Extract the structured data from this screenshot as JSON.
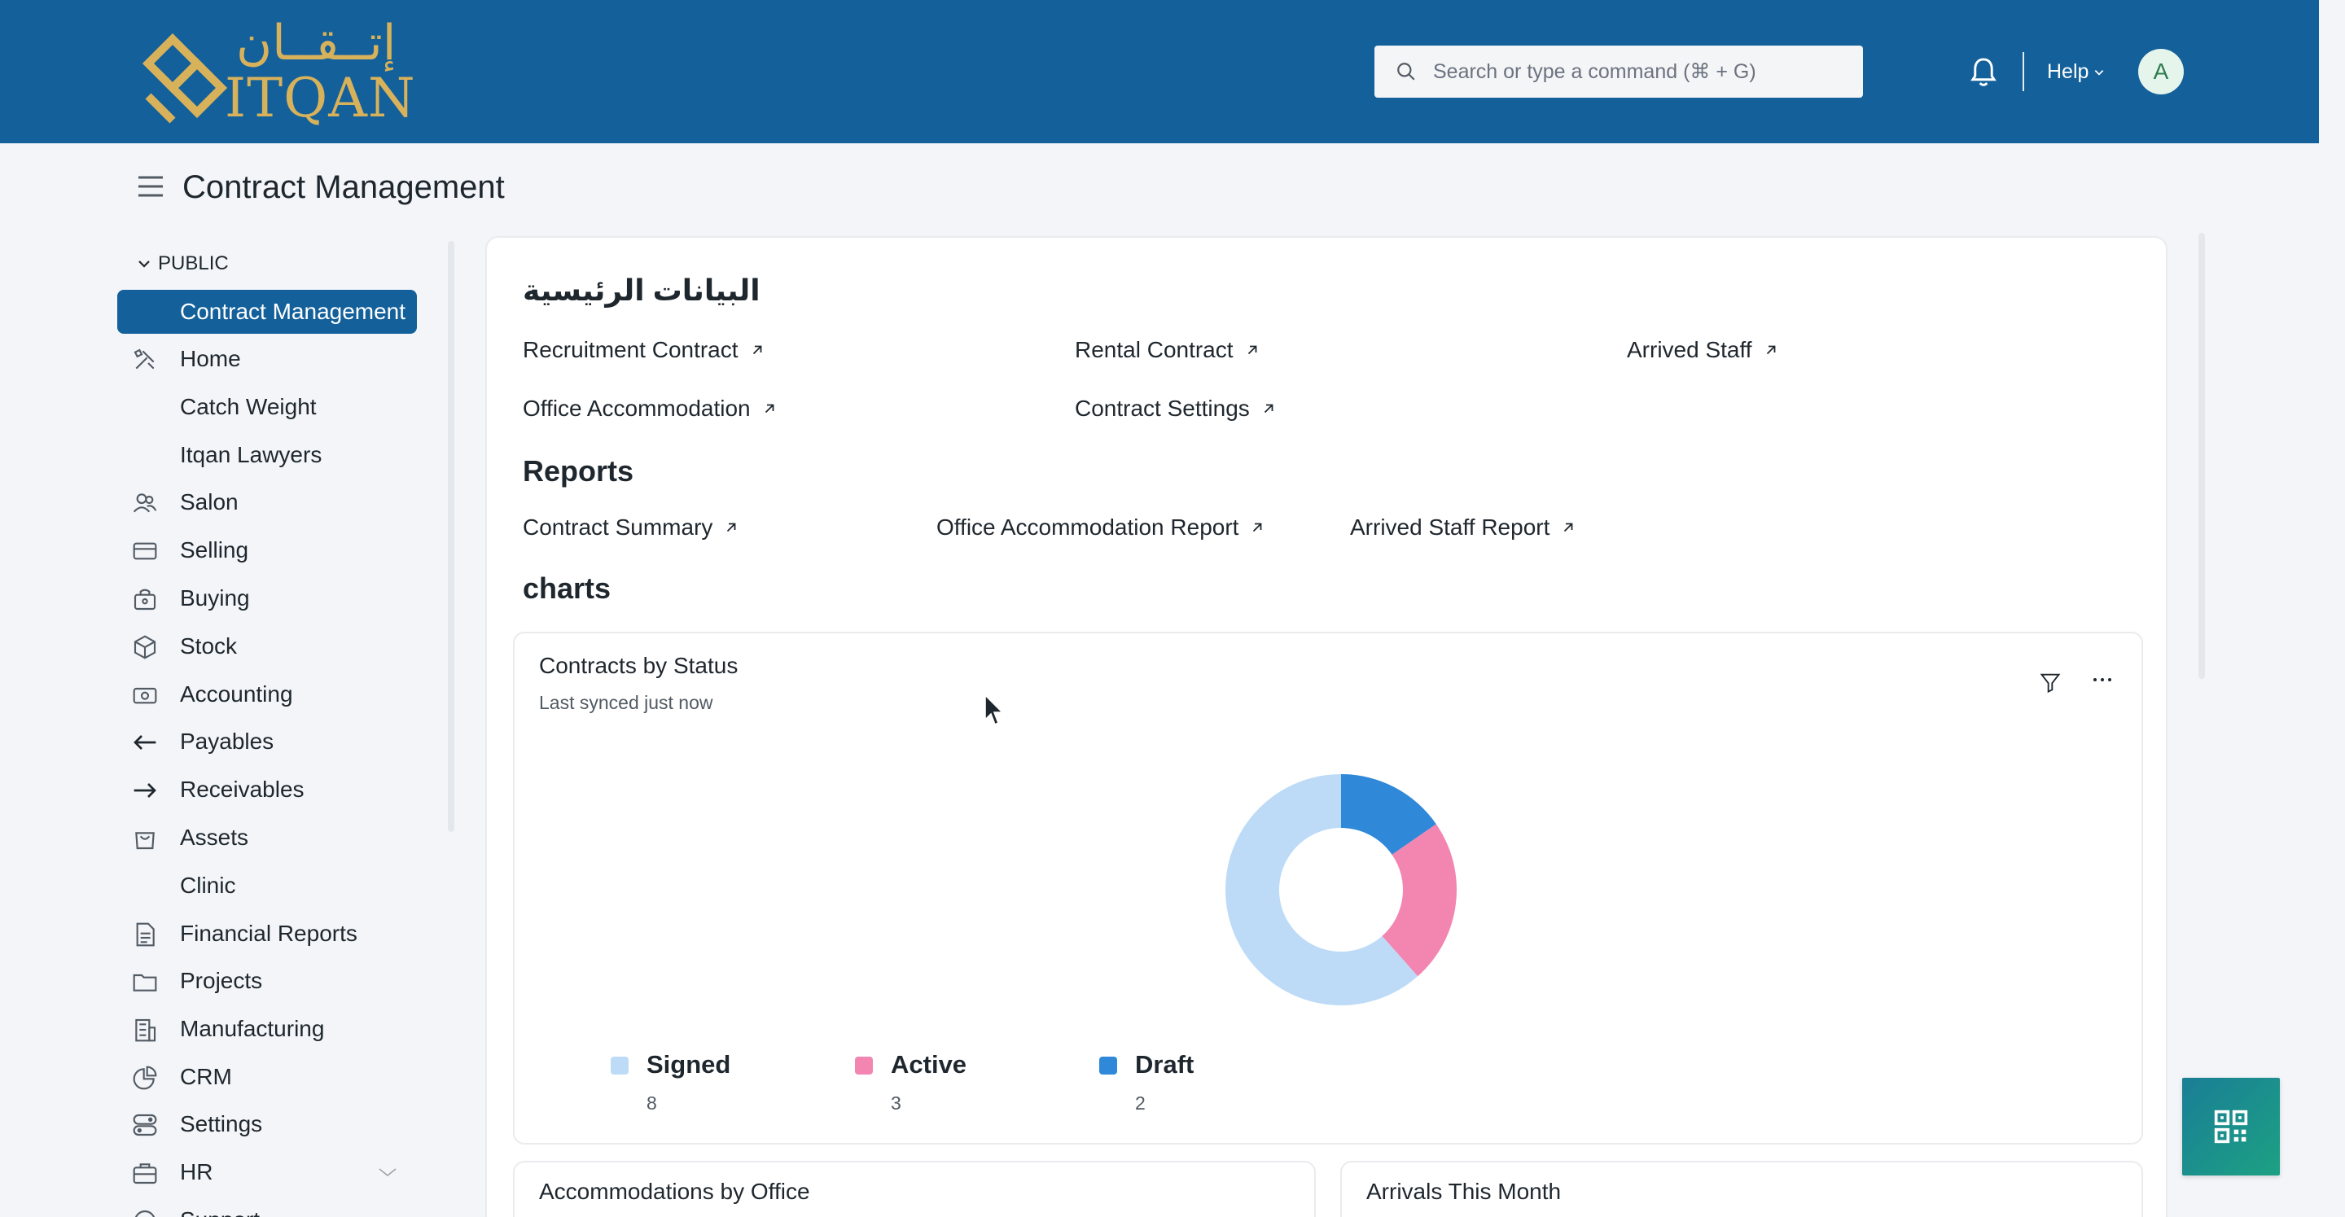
{
  "navbar": {
    "logo_text_en": "ITQAN",
    "logo_text_ar": "إتــقــان",
    "search_placeholder": "Search or type a command (⌘ + G)",
    "help_label": "Help",
    "avatar_initial": "A",
    "bg_color": "#13609a"
  },
  "page": {
    "title": "Contract Management"
  },
  "sidebar": {
    "section": "PUBLIC",
    "items": [
      {
        "label": "Contract Management",
        "icon": "none",
        "active": true
      },
      {
        "label": "Home",
        "icon": "tools-icon"
      },
      {
        "label": "Catch Weight",
        "icon": "none"
      },
      {
        "label": "Itqan Lawyers",
        "icon": "none"
      },
      {
        "label": "Salon",
        "icon": "users-icon"
      },
      {
        "label": "Selling",
        "icon": "card-icon"
      },
      {
        "label": "Buying",
        "icon": "bag-icon"
      },
      {
        "label": "Stock",
        "icon": "box-icon"
      },
      {
        "label": "Accounting",
        "icon": "money-icon"
      },
      {
        "label": "Payables",
        "icon": "arrow-left-icon"
      },
      {
        "label": "Receivables",
        "icon": "arrow-right-icon"
      },
      {
        "label": "Assets",
        "icon": "shopping-bag-icon"
      },
      {
        "label": "Clinic",
        "icon": "none"
      },
      {
        "label": "Financial Reports",
        "icon": "document-icon"
      },
      {
        "label": "Projects",
        "icon": "folder-icon"
      },
      {
        "label": "Manufacturing",
        "icon": "building-icon"
      },
      {
        "label": "CRM",
        "icon": "pie-icon"
      },
      {
        "label": "Settings",
        "icon": "toggles-icon"
      },
      {
        "label": "HR",
        "icon": "briefcase-icon"
      },
      {
        "label": "Support",
        "icon": "headset-icon"
      }
    ]
  },
  "main": {
    "masters_heading": "البيانات الرئيسية",
    "masters_links": [
      "Recruitment Contract",
      "Rental Contract",
      "Arrived Staff",
      "Office Accommodation",
      "Contract Settings"
    ],
    "reports_heading": "Reports",
    "reports_links": [
      "Contract Summary",
      "Office Accommodation Report",
      "Arrived Staff Report"
    ],
    "charts_heading": "charts"
  },
  "chart_card": {
    "title": "Contracts by Status",
    "subtitle": "Last synced just now"
  },
  "chart_data": {
    "type": "pie",
    "title": "Contracts by Status",
    "donut": true,
    "categories": [
      "Signed",
      "Active",
      "Draft"
    ],
    "values": [
      8,
      3,
      2
    ],
    "colors": [
      "#bddbf7",
      "#f385b1",
      "#2f88d8"
    ],
    "legend": "bottom-left"
  },
  "mini_cards": [
    {
      "title": "Accommodations by Office"
    },
    {
      "title": "Arrivals This Month"
    }
  ]
}
